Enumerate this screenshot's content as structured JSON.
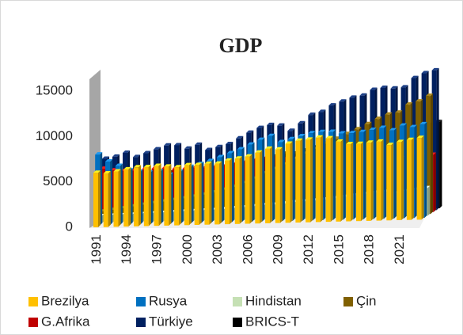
{
  "chart_data": {
    "type": "bar3d",
    "title": "GDP",
    "categories": [
      "1991",
      null,
      null,
      "1994",
      null,
      null,
      "1997",
      null,
      null,
      "2000",
      null,
      null,
      "2003",
      null,
      null,
      "2006",
      null,
      null,
      "2009",
      null,
      null,
      "2012",
      null,
      null,
      "2015",
      null,
      null,
      "2018",
      null,
      null,
      "2021",
      null,
      null
    ],
    "series": [
      {
        "name": "Brezilya",
        "color": "#FFC000",
        "values": [
          6000,
          5900,
          6100,
          6300,
          6500,
          6500,
          6600,
          6500,
          6400,
          6600,
          6600,
          6700,
          6700,
          7000,
          7200,
          7400,
          7800,
          8200,
          8100,
          8700,
          9000,
          9100,
          9300,
          9200,
          8800,
          8500,
          8500,
          8600,
          8700,
          8300,
          8600,
          8800,
          9000
        ]
      },
      {
        "name": "Rusya",
        "color": "#0070C0",
        "values": [
          7800,
          7000,
          6500,
          6000,
          5800,
          5700,
          5800,
          5400,
          5700,
          6200,
          6500,
          6800,
          7200,
          7600,
          8000,
          8500,
          9000,
          9400,
          8700,
          9000,
          9300,
          9600,
          9700,
          9700,
          9500,
          9500,
          9600,
          9800,
          10000,
          9700,
          10200,
          10000,
          10300
        ]
      },
      {
        "name": "Hindistan",
        "color": "#C5E0B4",
        "values": [
          800,
          820,
          850,
          880,
          920,
          960,
          990,
          1030,
          1080,
          1110,
          1150,
          1180,
          1240,
          1320,
          1400,
          1490,
          1590,
          1620,
          1720,
          1840,
          1900,
          1970,
          2060,
          2170,
          2300,
          2430,
          2560,
          2680,
          2750,
          2540,
          2740,
          2900,
          3050
        ]
      },
      {
        "name": "Çin",
        "color": "#806000",
        "values": [
          1100,
          1250,
          1400,
          1580,
          1740,
          1890,
          2050,
          2190,
          2330,
          2500,
          2700,
          2920,
          3190,
          3480,
          3860,
          4320,
          4900,
          5340,
          5810,
          6390,
          6960,
          7460,
          8000,
          8520,
          9010,
          9510,
          10050,
          10590,
          11050,
          11240,
          12090,
          12420,
          13000
        ]
      },
      {
        "name": "G.Afrika",
        "color": "#C00000",
        "values": [
          5600,
          5400,
          5300,
          5300,
          5400,
          5500,
          5500,
          5400,
          5400,
          5500,
          5500,
          5600,
          5700,
          5900,
          6100,
          6300,
          6500,
          6600,
          6400,
          6500,
          6600,
          6700,
          6700,
          6700,
          6600,
          6600,
          6600,
          6600,
          6500,
          6000,
          6200,
          6300,
          6300
        ]
      },
      {
        "name": "Türkiye",
        "color": "#002060",
        "values": [
          6500,
          6700,
          7100,
          6600,
          7000,
          7400,
          7800,
          7800,
          7400,
          7800,
          7200,
          7500,
          7800,
          8400,
          9000,
          9500,
          9800,
          9700,
          9100,
          9900,
          10800,
          11100,
          11800,
          12200,
          12600,
          12800,
          13400,
          13600,
          13500,
          13600,
          14600,
          15100,
          15400
        ]
      },
      {
        "name": "BRICS-T",
        "color": "#000000",
        "values": [
          4600,
          4500,
          4500,
          4400,
          4500,
          4500,
          4600,
          4600,
          4600,
          4700,
          4700,
          4800,
          5000,
          5200,
          5500,
          5800,
          6100,
          6400,
          6400,
          6700,
          7000,
          7300,
          7600,
          7800,
          7900,
          8000,
          8200,
          8400,
          8600,
          8500,
          9000,
          9200,
          9500
        ]
      }
    ],
    "ylim": [
      0,
      15000
    ],
    "yticks": [
      0,
      5000,
      10000,
      15000
    ]
  }
}
